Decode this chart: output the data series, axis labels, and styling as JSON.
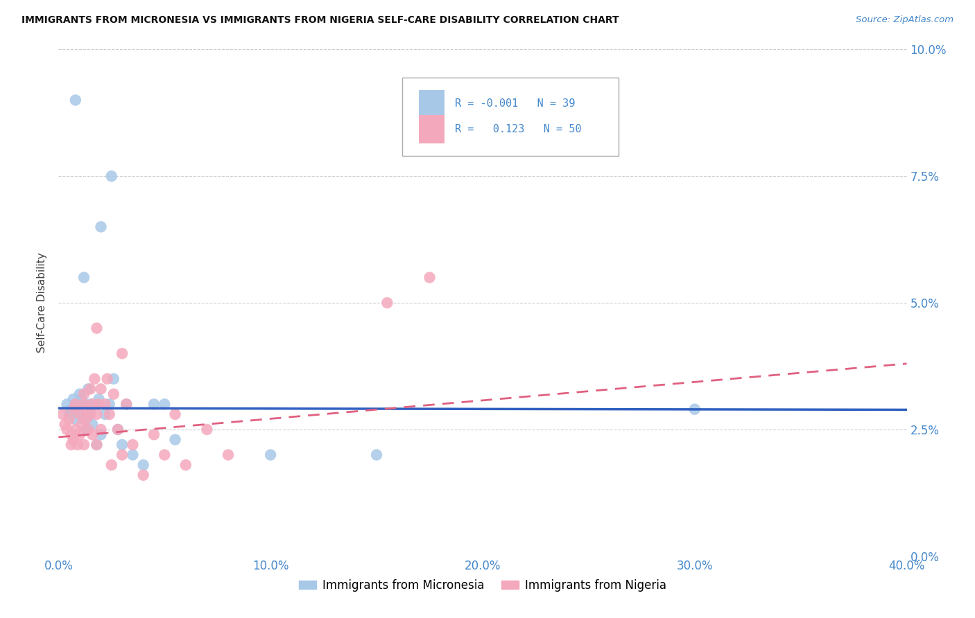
{
  "title": "IMMIGRANTS FROM MICRONESIA VS IMMIGRANTS FROM NIGERIA SELF-CARE DISABILITY CORRELATION CHART",
  "source": "Source: ZipAtlas.com",
  "ylabel_label": "Self-Care Disability",
  "xlim": [
    0.0,
    0.4
  ],
  "ylim": [
    0.0,
    0.1
  ],
  "yticks": [
    0.0,
    0.025,
    0.05,
    0.075,
    0.1
  ],
  "xticks": [
    0.0,
    0.1,
    0.2,
    0.3,
    0.4
  ],
  "xtick_labels": [
    "0.0%",
    "10.0%",
    "20.0%",
    "30.0%",
    "40.0%"
  ],
  "ytick_labels": [
    "0.0%",
    "2.5%",
    "5.0%",
    "7.5%",
    "10.0%"
  ],
  "micronesia_R": "-0.001",
  "micronesia_N": "39",
  "nigeria_R": "0.123",
  "nigeria_N": "50",
  "micronesia_color": "#a8c8e8",
  "nigeria_color": "#f4a8bc",
  "micronesia_line_color": "#3060c0",
  "nigeria_line_color": "#e06080",
  "axis_label_color": "#4488cc",
  "grid_color": "#cccccc",
  "micronesia_x": [
    0.004,
    0.005,
    0.006,
    0.007,
    0.008,
    0.008,
    0.009,
    0.01,
    0.01,
    0.011,
    0.012,
    0.012,
    0.013,
    0.014,
    0.015,
    0.015,
    0.016,
    0.017,
    0.018,
    0.019,
    0.02,
    0.022,
    0.024,
    0.026,
    0.028,
    0.03,
    0.032,
    0.035,
    0.04,
    0.045,
    0.05,
    0.055,
    0.15,
    0.02,
    0.025,
    0.008,
    0.012,
    0.3,
    0.1
  ],
  "micronesia_y": [
    0.03,
    0.028,
    0.029,
    0.031,
    0.03,
    0.027,
    0.029,
    0.032,
    0.028,
    0.031,
    0.03,
    0.027,
    0.025,
    0.033,
    0.03,
    0.028,
    0.026,
    0.03,
    0.022,
    0.031,
    0.024,
    0.028,
    0.03,
    0.035,
    0.025,
    0.022,
    0.03,
    0.02,
    0.018,
    0.03,
    0.03,
    0.023,
    0.02,
    0.065,
    0.075,
    0.09,
    0.055,
    0.029,
    0.02
  ],
  "nigeria_x": [
    0.002,
    0.003,
    0.004,
    0.005,
    0.006,
    0.006,
    0.007,
    0.007,
    0.008,
    0.008,
    0.009,
    0.01,
    0.01,
    0.011,
    0.012,
    0.012,
    0.013,
    0.013,
    0.014,
    0.015,
    0.015,
    0.016,
    0.016,
    0.017,
    0.018,
    0.018,
    0.019,
    0.02,
    0.02,
    0.022,
    0.023,
    0.024,
    0.025,
    0.026,
    0.028,
    0.03,
    0.032,
    0.035,
    0.04,
    0.045,
    0.05,
    0.055,
    0.06,
    0.07,
    0.08,
    0.155,
    0.175,
    0.03,
    0.018,
    0.012
  ],
  "nigeria_y": [
    0.028,
    0.026,
    0.025,
    0.027,
    0.024,
    0.022,
    0.023,
    0.029,
    0.025,
    0.03,
    0.022,
    0.024,
    0.028,
    0.026,
    0.03,
    0.032,
    0.027,
    0.029,
    0.025,
    0.033,
    0.028,
    0.03,
    0.024,
    0.035,
    0.028,
    0.022,
    0.03,
    0.025,
    0.033,
    0.03,
    0.035,
    0.028,
    0.018,
    0.032,
    0.025,
    0.02,
    0.03,
    0.022,
    0.016,
    0.024,
    0.02,
    0.028,
    0.018,
    0.025,
    0.02,
    0.05,
    0.055,
    0.04,
    0.045,
    0.022
  ],
  "mic_line_y0": 0.0292,
  "mic_line_y1": 0.0289,
  "nig_line_y0": 0.0235,
  "nig_line_y1": 0.038
}
